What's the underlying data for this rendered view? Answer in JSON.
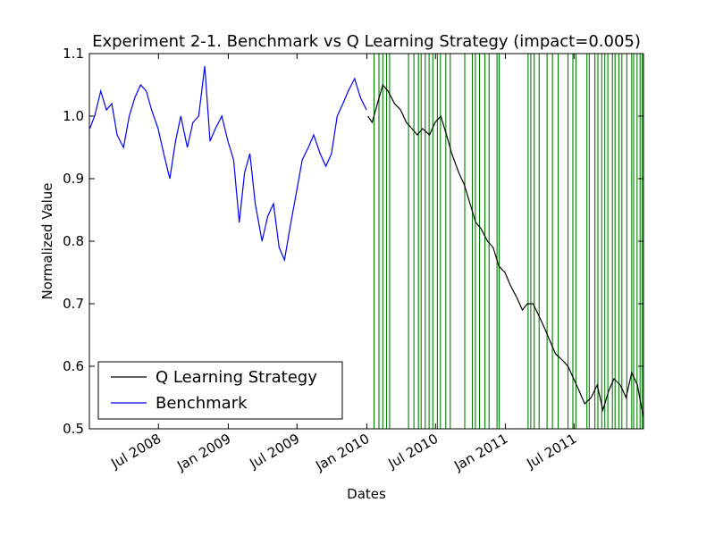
{
  "chart_data": {
    "type": "line",
    "title": "Experiment 2-1. Benchmark vs Q Learning Strategy (impact=0.005)",
    "xlabel": "Dates",
    "ylabel": "Normalized Value",
    "xlim": [
      "2008-01-01",
      "2011-12-31"
    ],
    "ylim": [
      0.5,
      1.1
    ],
    "yticks": [
      0.5,
      0.6,
      0.7,
      0.8,
      0.9,
      1.0,
      1.1
    ],
    "ytick_labels": [
      "0.5",
      "0.6",
      "0.7",
      "0.8",
      "0.9",
      "1.0",
      "1.1"
    ],
    "xticks": [
      "2008-07-01",
      "2009-01-01",
      "2009-07-01",
      "2010-01-01",
      "2010-07-01",
      "2011-01-01",
      "2011-07-01"
    ],
    "xtick_labels": [
      "Jul 2008",
      "Jan 2009",
      "Jul 2009",
      "Jan 2010",
      "Jul 2010",
      "Jan 2011",
      "Jul 2011"
    ],
    "grid": false,
    "legend_position": "lower-left",
    "series": [
      {
        "name": "Q Learning Strategy",
        "color": "#000000",
        "x": [
          "2010-01-04",
          "2010-01-15",
          "2010-01-29",
          "2010-02-12",
          "2010-02-26",
          "2010-03-15",
          "2010-03-31",
          "2010-04-15",
          "2010-04-30",
          "2010-05-14",
          "2010-05-28",
          "2010-06-15",
          "2010-06-30",
          "2010-07-15",
          "2010-07-30",
          "2010-08-13",
          "2010-08-31",
          "2010-09-15",
          "2010-09-30",
          "2010-10-15",
          "2010-10-29",
          "2010-11-15",
          "2010-11-30",
          "2010-12-15",
          "2010-12-31",
          "2011-01-14",
          "2011-01-31",
          "2011-02-15",
          "2011-02-28",
          "2011-03-15",
          "2011-03-31",
          "2011-04-15",
          "2011-04-29",
          "2011-05-13",
          "2011-05-31",
          "2011-06-15",
          "2011-06-30",
          "2011-07-15",
          "2011-07-29",
          "2011-08-15",
          "2011-08-31",
          "2011-09-15",
          "2011-09-30",
          "2011-10-14",
          "2011-10-31",
          "2011-11-15",
          "2011-11-30",
          "2011-12-15",
          "2011-12-30"
        ],
        "values": [
          1.0,
          0.99,
          1.02,
          1.05,
          1.04,
          1.02,
          1.01,
          0.99,
          0.98,
          0.97,
          0.98,
          0.97,
          0.99,
          1.0,
          0.97,
          0.94,
          0.91,
          0.89,
          0.86,
          0.83,
          0.82,
          0.8,
          0.79,
          0.76,
          0.75,
          0.73,
          0.71,
          0.69,
          0.7,
          0.7,
          0.68,
          0.66,
          0.64,
          0.62,
          0.61,
          0.6,
          0.58,
          0.56,
          0.54,
          0.55,
          0.57,
          0.53,
          0.56,
          0.58,
          0.57,
          0.55,
          0.59,
          0.57,
          0.52
        ]
      },
      {
        "name": "Benchmark",
        "color": "#0000ff",
        "x": [
          "2008-01-02",
          "2008-01-15",
          "2008-01-31",
          "2008-02-15",
          "2008-02-29",
          "2008-03-14",
          "2008-03-31",
          "2008-04-15",
          "2008-04-30",
          "2008-05-15",
          "2008-05-30",
          "2008-06-13",
          "2008-06-30",
          "2008-07-15",
          "2008-07-31",
          "2008-08-15",
          "2008-08-29",
          "2008-09-15",
          "2008-09-30",
          "2008-10-15",
          "2008-10-31",
          "2008-11-14",
          "2008-11-28",
          "2008-12-15",
          "2008-12-31",
          "2009-01-15",
          "2009-01-30",
          "2009-02-13",
          "2009-02-27",
          "2009-03-13",
          "2009-03-31",
          "2009-04-15",
          "2009-04-30",
          "2009-05-15",
          "2009-05-29",
          "2009-06-15",
          "2009-06-30",
          "2009-07-15",
          "2009-07-31",
          "2009-08-14",
          "2009-08-31",
          "2009-09-15",
          "2009-09-30",
          "2009-10-15",
          "2009-10-30",
          "2009-11-13",
          "2009-11-30",
          "2009-12-15",
          "2009-12-31"
        ],
        "values": [
          0.98,
          1.0,
          1.04,
          1.01,
          1.02,
          0.97,
          0.95,
          1.0,
          1.03,
          1.05,
          1.04,
          1.01,
          0.98,
          0.94,
          0.9,
          0.96,
          1.0,
          0.95,
          0.99,
          1.0,
          1.08,
          0.96,
          0.98,
          1.0,
          0.96,
          0.93,
          0.83,
          0.91,
          0.94,
          0.86,
          0.8,
          0.84,
          0.86,
          0.79,
          0.77,
          0.83,
          0.88,
          0.93,
          0.95,
          0.97,
          0.94,
          0.92,
          0.94,
          1.0,
          1.02,
          1.04,
          1.06,
          1.03,
          1.01
        ]
      }
    ],
    "vertical_lines": {
      "color": "#008000",
      "x": [
        "2010-01-20",
        "2010-02-02",
        "2010-02-12",
        "2010-02-22",
        "2010-03-02",
        "2010-04-21",
        "2010-05-05",
        "2010-05-17",
        "2010-05-24",
        "2010-06-04",
        "2010-06-14",
        "2010-06-24",
        "2010-07-06",
        "2010-07-14",
        "2010-07-28",
        "2010-08-09",
        "2010-09-16",
        "2010-10-06",
        "2010-10-14",
        "2010-10-25",
        "2010-11-08",
        "2010-11-19",
        "2010-12-10",
        "2010-12-16",
        "2011-03-02",
        "2011-03-09",
        "2011-03-18",
        "2011-03-31",
        "2011-04-21",
        "2011-05-05",
        "2011-05-20",
        "2011-06-15",
        "2011-06-28",
        "2011-07-06",
        "2011-08-04",
        "2011-08-10",
        "2011-08-25",
        "2011-09-02",
        "2011-09-12",
        "2011-09-20",
        "2011-09-28",
        "2011-10-10",
        "2011-10-17",
        "2011-10-27",
        "2011-11-04",
        "2011-11-17",
        "2011-11-30",
        "2011-12-05",
        "2011-12-14",
        "2011-12-22",
        "2011-12-28"
      ]
    }
  }
}
